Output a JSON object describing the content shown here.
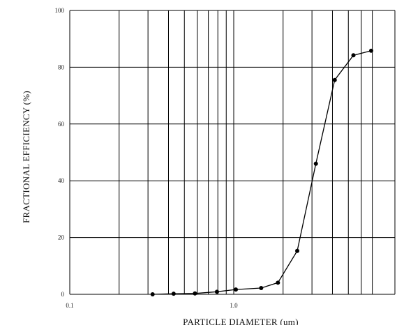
{
  "chart_data": {
    "type": "line",
    "title": "",
    "xlabel": "PARTICLE DIAMETER (um)",
    "ylabel": "FRACTIONAL EFFICIENCY (%)",
    "x_scale": "log",
    "xlim": [
      0.1,
      7
    ],
    "ylim": [
      0,
      100
    ],
    "grid": true,
    "x_ticks": [
      {
        "value": 0.1,
        "label": "0.1"
      },
      {
        "value": 1.0,
        "label": "1.0"
      }
    ],
    "y_ticks": [
      {
        "value": 0,
        "label": "0"
      },
      {
        "value": 20,
        "label": "20"
      },
      {
        "value": 40,
        "label": "40"
      },
      {
        "value": 60,
        "label": "60"
      },
      {
        "value": 80,
        "label": "80"
      },
      {
        "value": 100,
        "label": "100"
      }
    ],
    "x_gridlines": [
      0.2,
      0.3,
      0.4,
      0.5,
      0.6,
      0.7,
      0.8,
      0.9,
      1.0,
      2.0,
      3.0,
      4.0,
      5.0,
      6.0,
      7.0
    ],
    "series": [
      {
        "color": "#000000",
        "x": [
          0.32,
          0.43,
          0.58,
          0.79,
          1.03,
          1.47,
          1.86,
          2.44,
          3.17,
          4.13,
          5.37,
          6.89
        ],
        "y": [
          0,
          0.2,
          0.3,
          0.9,
          1.7,
          2.2,
          4.1,
          15.3,
          46,
          75.5,
          84.2,
          85.8
        ]
      }
    ]
  }
}
